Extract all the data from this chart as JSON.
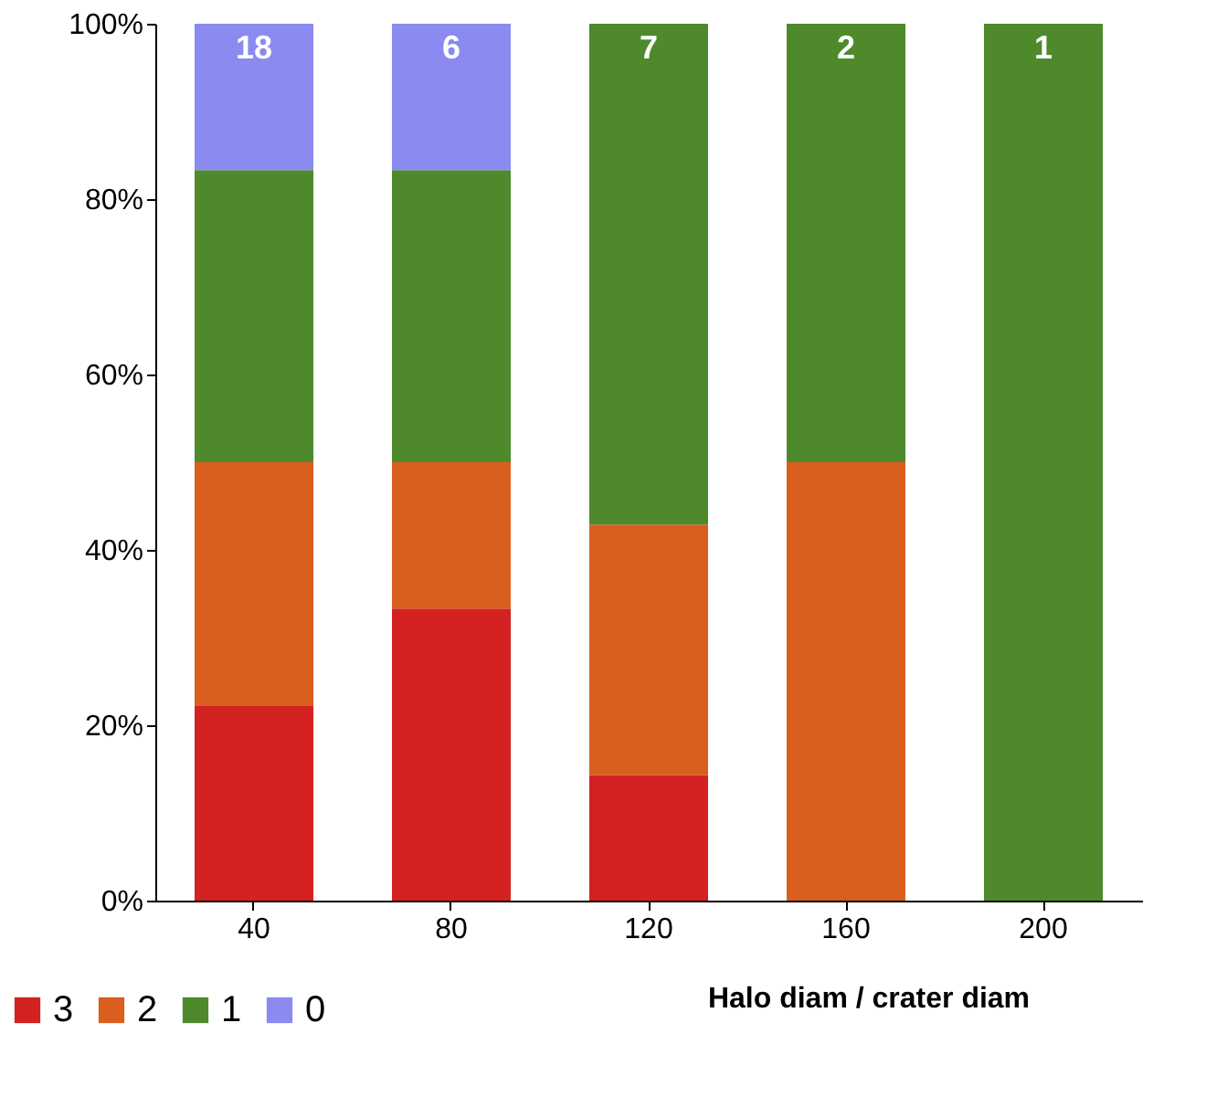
{
  "chart_data": {
    "type": "bar",
    "stacked": true,
    "xlabel": "Halo diam / crater diam",
    "categories": [
      "40",
      "80",
      "120",
      "160",
      "200"
    ],
    "series": [
      {
        "name": "3",
        "color": "#d42121",
        "values": [
          22.2,
          33.3,
          14.3,
          0,
          0
        ]
      },
      {
        "name": "2",
        "color": "#d95f1f",
        "values": [
          27.8,
          16.7,
          28.6,
          50,
          0
        ]
      },
      {
        "name": "1",
        "color": "#4e8a2c",
        "values": [
          33.3,
          33.3,
          57.1,
          50,
          100
        ]
      },
      {
        "name": "0",
        "color": "#8a8af0",
        "values": [
          16.7,
          16.7,
          0,
          0,
          0
        ]
      }
    ],
    "annotations": [
      {
        "text": "18",
        "x": "40",
        "y": 100
      },
      {
        "text": "6",
        "x": "80",
        "y": 100
      },
      {
        "text": "7",
        "x": "120",
        "y": 100
      },
      {
        "text": "2",
        "x": "160",
        "y": 100
      },
      {
        "text": "1",
        "x": "200",
        "y": 100
      }
    ],
    "ylim": [
      0,
      100
    ],
    "yticks": [
      {
        "value": 0,
        "label": "0%"
      },
      {
        "value": 20,
        "label": "20%"
      },
      {
        "value": 40,
        "label": "40%"
      },
      {
        "value": 60,
        "label": "60%"
      },
      {
        "value": 80,
        "label": "80%"
      },
      {
        "value": 100,
        "label": "100%"
      }
    ],
    "grid": false,
    "legend": "bottom left"
  }
}
